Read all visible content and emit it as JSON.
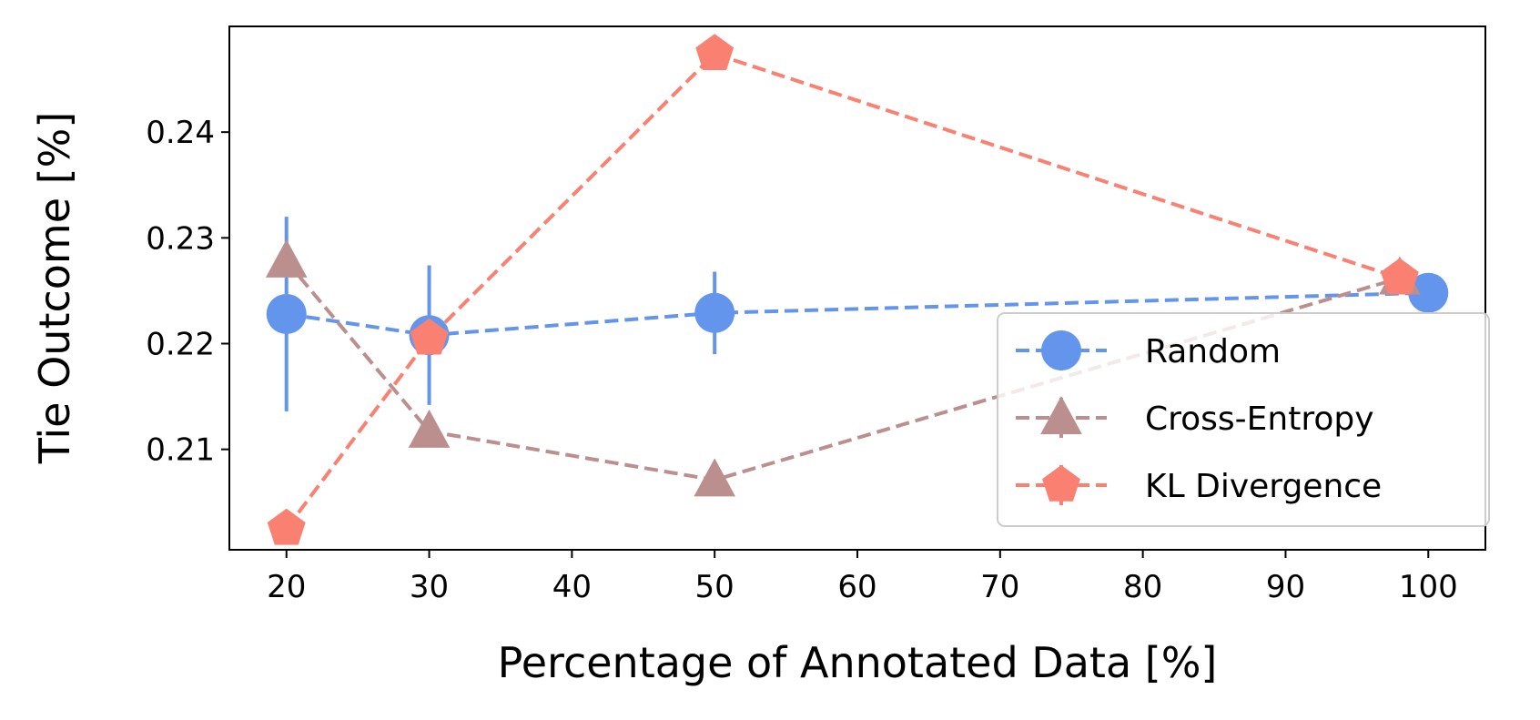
{
  "chart_data": {
    "type": "line",
    "title": "",
    "xlabel": "Percentage of Annotated Data [%]",
    "ylabel": "Tie Outcome [%]",
    "xlim": [
      16,
      104
    ],
    "ylim": [
      0.2005,
      0.25
    ],
    "xticks": [
      20,
      30,
      40,
      50,
      60,
      70,
      80,
      90,
      100
    ],
    "yticks": [
      0.21,
      0.22,
      0.23,
      0.24
    ],
    "grid": false,
    "legend_position": "lower-right",
    "series": [
      {
        "name": "Random",
        "color": "#6495ed",
        "marker": "circle",
        "linestyle": "dashed",
        "points": [
          {
            "x": 20,
            "y": 0.2228,
            "err": 0.0092
          },
          {
            "x": 30,
            "y": 0.2208,
            "err": 0.0066
          },
          {
            "x": 50,
            "y": 0.2229,
            "err": 0.0039
          },
          {
            "x": 100,
            "y": 0.2248,
            "err": 0.0002
          }
        ]
      },
      {
        "name": "Cross-Entropy",
        "color": "#bc8f8f",
        "marker": "triangle",
        "linestyle": "dashed",
        "points": [
          {
            "x": 20,
            "y": 0.2278,
            "err": 0
          },
          {
            "x": 30,
            "y": 0.2117,
            "err": 0
          },
          {
            "x": 50,
            "y": 0.2071,
            "err": 0
          },
          {
            "x": 98,
            "y": 0.2262,
            "err": 0
          }
        ]
      },
      {
        "name": "KL Divergence",
        "color": "#fa8072",
        "marker": "pentagon",
        "linestyle": "dashed",
        "points": [
          {
            "x": 20,
            "y": 0.2025,
            "err": 0.0003
          },
          {
            "x": 30,
            "y": 0.2205,
            "err": 0.0004
          },
          {
            "x": 50,
            "y": 0.2474,
            "err": 0.0004
          },
          {
            "x": 98,
            "y": 0.2262,
            "err": 0.0004
          }
        ]
      }
    ]
  }
}
